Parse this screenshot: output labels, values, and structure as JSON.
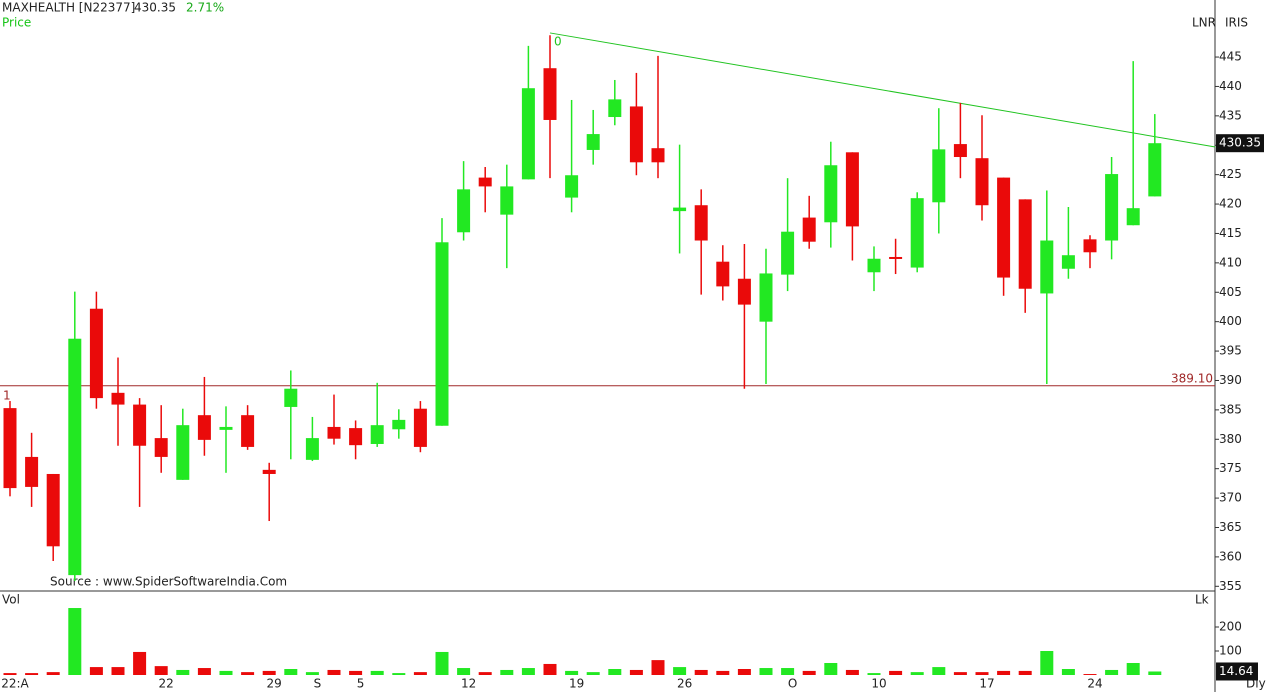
{
  "header": {
    "symbol": "MAXHEALTH [N22377]",
    "change": "2.71%",
    "price_label": "Price",
    "source": "Source : www.SpiderSoftwareIndia.Com",
    "tags": [
      "LNR",
      "IRIS"
    ],
    "period": "Dly"
  },
  "chart_data": [
    {
      "type": "candlestick",
      "name": "Price",
      "categories": [
        "22:A",
        null,
        null,
        null,
        null,
        null,
        null,
        "22",
        null,
        null,
        null,
        null,
        "29",
        null,
        "S",
        null,
        "5",
        null,
        null,
        null,
        null,
        "12",
        null,
        null,
        null,
        null,
        "19",
        null,
        null,
        null,
        null,
        "26",
        null,
        null,
        null,
        null,
        "O",
        null,
        null,
        null,
        "10",
        null,
        null,
        null,
        null,
        "17",
        null,
        null,
        null,
        null,
        "24",
        null,
        null,
        null
      ],
      "open": [
        385.3,
        377,
        374.1,
        356.9,
        402.2,
        387.9,
        385.9,
        380.2,
        373.1,
        384.1,
        381.6,
        384.1,
        374.8,
        385.5,
        376.5,
        382.1,
        381.9,
        379.2,
        381.7,
        385.2,
        382.3,
        415.2,
        424.5,
        418.2,
        424.2,
        443.1,
        421.1,
        429.2,
        434.8,
        436.6,
        429.5,
        418.8,
        419.8,
        410.2,
        407.3,
        400,
        408,
        417.7,
        416.9,
        428.8,
        408.4,
        411,
        409.2,
        420.3,
        430.2,
        427.8,
        424.5,
        420.8,
        404.8,
        409,
        414,
        413.8,
        416.4,
        421.3
      ],
      "high": [
        386.5,
        381.1,
        374.1,
        405.1,
        405.1,
        393.9,
        387,
        385.8,
        385.2,
        390.6,
        385.6,
        385.8,
        376,
        391.7,
        383.8,
        387.6,
        383.2,
        389.6,
        385.1,
        386.5,
        417.6,
        427.3,
        426.3,
        426.7,
        446.9,
        448.7,
        437.7,
        436,
        441.1,
        442.3,
        445.2,
        430.1,
        422.5,
        413,
        413.2,
        412.4,
        424.4,
        421.4,
        430.6,
        428.8,
        412.8,
        414.1,
        422,
        436.3,
        437.2,
        435.1,
        424.5,
        420.8,
        422.3,
        419.5,
        414.7,
        428,
        444.3,
        435.3
      ],
      "low": [
        370.3,
        368.5,
        359.3,
        355.9,
        385.2,
        378.9,
        368.5,
        374.3,
        373.1,
        377.2,
        374.3,
        378.2,
        366.1,
        376.6,
        376.3,
        379.1,
        376.6,
        378.7,
        380.1,
        377.8,
        382.3,
        413.8,
        418.6,
        409.1,
        424.2,
        424.4,
        418.6,
        426.7,
        433.4,
        424.9,
        424.4,
        411.6,
        404.6,
        403.6,
        388.6,
        389.4,
        405.2,
        412.4,
        412.6,
        410.4,
        405.2,
        408.1,
        408.4,
        415,
        424.4,
        417.2,
        404.4,
        401.5,
        389.4,
        407.3,
        409.1,
        410.6,
        416.4,
        421.3
      ],
      "close": [
        371.7,
        371.9,
        361.8,
        397.1,
        387,
        385.9,
        378.9,
        377,
        382.4,
        379.9,
        382.1,
        378.7,
        374.1,
        388.6,
        380.2,
        380.1,
        379,
        382.4,
        383.3,
        378.7,
        413.5,
        422.5,
        423,
        423,
        439.7,
        434.3,
        424.9,
        431.9,
        437.8,
        427.1,
        427.1,
        419.4,
        413.8,
        406,
        402.9,
        408.2,
        415.3,
        413.6,
        426.6,
        416.2,
        410.7,
        410.7,
        421,
        429.3,
        428,
        419.8,
        407.5,
        405.6,
        413.8,
        411.3,
        411.8,
        425.1,
        419.3,
        430.35
      ],
      "up_color": "#22e822",
      "down_color": "#ea0a0a",
      "ylim": [
        354.2,
        454.7
      ],
      "yticks": [
        355,
        360,
        365,
        370,
        375,
        380,
        385,
        390,
        395,
        400,
        405,
        410,
        415,
        420,
        425,
        430,
        435,
        440,
        445
      ],
      "hline": {
        "value": 389.1,
        "label": "389.10",
        "tag": "1",
        "color": "#a02828"
      },
      "trendline": {
        "x": [
          25,
          55.8
        ],
        "values": [
          449.1,
          429.7
        ],
        "label": "0",
        "color": "#22c422"
      }
    },
    {
      "type": "volume",
      "name": "Vol",
      "unit": "Lk",
      "values": [
        8,
        8,
        12,
        279,
        33,
        33,
        96,
        37,
        21,
        29,
        17,
        12,
        17,
        25,
        12,
        21,
        17,
        17,
        8,
        12,
        96,
        29,
        12,
        21,
        29,
        46,
        17,
        12,
        25,
        21,
        62,
        33,
        21,
        17,
        25,
        29,
        29,
        17,
        50,
        21,
        8,
        17,
        12,
        33,
        12,
        12,
        17,
        17,
        100,
        25,
        4,
        21,
        50,
        14.64
      ],
      "ylim": [
        0,
        345.8
      ],
      "yticks": [
        100,
        200
      ]
    }
  ]
}
